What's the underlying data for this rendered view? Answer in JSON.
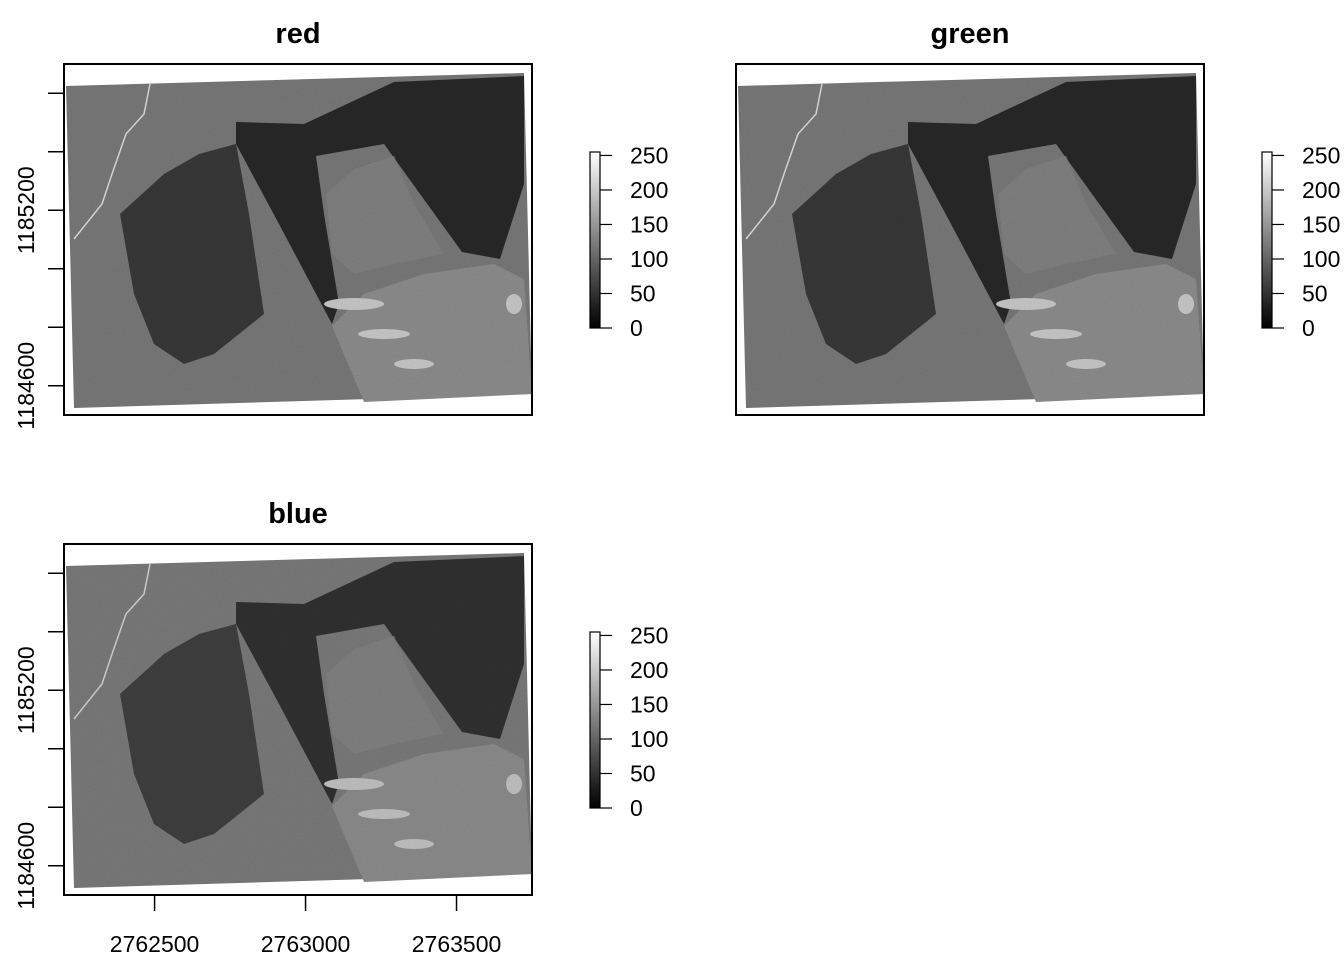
{
  "panels": [
    {
      "title": "red",
      "bright": 1.0,
      "shadow_lift": 0.0,
      "show_x_axis": false,
      "show_y_axis": true
    },
    {
      "title": "green",
      "bright": 1.0,
      "shadow_lift": 0.0,
      "show_x_axis": false,
      "show_y_axis": false
    },
    {
      "title": "blue",
      "bright": 0.9,
      "shadow_lift": 0.05,
      "show_x_axis": true,
      "show_y_axis": true
    }
  ],
  "chart_data": {
    "type": "heatmap",
    "layers": [
      "red",
      "green",
      "blue"
    ],
    "xlim": [
      2762200,
      2763750
    ],
    "ylim": [
      1184500,
      1185700
    ],
    "x_ticks": [
      2762500,
      2763000,
      2763500
    ],
    "x_tick_labels": [
      "2762500",
      "2763000",
      "2763500"
    ],
    "y_ticks": [
      1184600,
      1184800,
      1185000,
      1185200,
      1185400,
      1185600
    ],
    "y_tick_labels": [
      "1184600",
      "",
      "",
      "1185200",
      "",
      ""
    ],
    "legend": {
      "range": [
        0,
        255
      ],
      "ticks": [
        0,
        50,
        100,
        150,
        200,
        250
      ],
      "tick_labels": [
        "0",
        "50",
        "100",
        "150",
        "200",
        "250"
      ],
      "colormap": "grayscale",
      "placement": "right"
    },
    "grid": false
  }
}
